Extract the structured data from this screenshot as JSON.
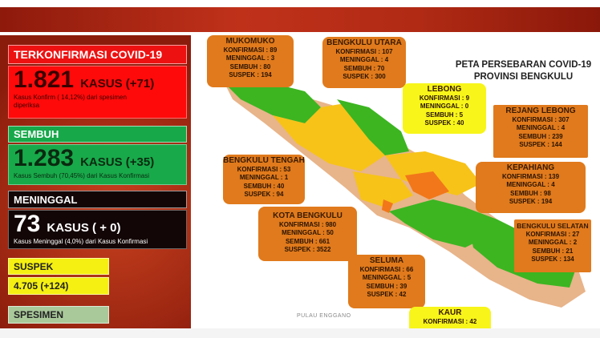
{
  "stats": {
    "confirmed": {
      "label": "TERKONFIRMASI COVID-19",
      "value": "1.821",
      "unit": "KASUS (+71)",
      "note": "Kasus Konfirm ( 14,12%) dari spesimen diperiksa"
    },
    "recovered": {
      "label": "SEMBUH",
      "value": "1.283",
      "unit": "KASUS (+35)",
      "note": "Kasus Sembuh (70,45%) dari Kasus Konfirmasi"
    },
    "deaths": {
      "label": "MENINGGAL",
      "value": "73",
      "unit": "KASUS ( + 0)",
      "note": "Kasus Meninggal (4,0%) dari Kasus Konfirmasi"
    },
    "suspect": {
      "label": "SUSPEK",
      "value": "4.705 (+124)"
    },
    "specimen": {
      "label": "SPESIMEN"
    }
  },
  "map": {
    "title_line1": "PETA PERSEBARAN COVID-19",
    "title_line2": "PROVINSI BENGKULU",
    "island_label": "PULAU ENGGANO",
    "colors": {
      "green": "#3cb521",
      "yellow": "#f7c318",
      "orange": "#f2771a",
      "box": "#e07a1c",
      "box_yellow": "#f7f51a"
    },
    "regions": {
      "mukomuko": {
        "name": "MUKOMUKO",
        "k": "KONFIRMASI : 89",
        "m": "MENINGGAL : 3",
        "s": "SEMBUH : 80",
        "sp": "SUSPEK : 194"
      },
      "bengkulu_utara": {
        "name": "BENGKULU UTARA",
        "k": "KONFIRMASI : 107",
        "m": "MENINGGAL : 4",
        "s": "SEMBUH : 70",
        "sp": "SUSPEK : 300"
      },
      "lebong": {
        "name": "LEBONG",
        "k": "KONFIRMASI : 9",
        "m": "MENINGGAL : 0",
        "s": "SEMBUH : 5",
        "sp": "SUSPEK : 40"
      },
      "rejang_lebong": {
        "name": "REJANG LEBONG",
        "k": "KONFIRMASI : 307",
        "m": "MENINGGAL : 4",
        "s": "SEMBUH : 239",
        "sp": "SUSPEK : 144"
      },
      "kepahiang": {
        "name": "KEPAHIANG",
        "k": "KONFIRMASI : 139",
        "m": "MENINGGAL : 4",
        "s": "SEMBUH : 98",
        "sp": "SUSPEK : 194"
      },
      "bengkulu_tengah": {
        "name": "BENGKULU TENGAH",
        "k": "KONFIRMASI : 53",
        "m": "MENINGGAL : 1",
        "s": "SEMBUH : 40",
        "sp": "SUSPEK : 94"
      },
      "kota_bengkulu": {
        "name": "KOTA BENGKULU",
        "k": "KONFIRMASI : 980",
        "m": "MENINGGAL : 50",
        "s": "SEMBUH : 661",
        "sp": "SUSPEK : 3522"
      },
      "seluma": {
        "name": "SELUMA",
        "k": "KONFIRMASI : 66",
        "m": "MENINGGAL : 5",
        "s": "SEMBUH : 39",
        "sp": "SUSPEK : 42"
      },
      "bengkulu_selatan": {
        "name": "BENGKULU SELATAN",
        "k": "KONFIRMASI : 27",
        "m": "MENINGGAL : 2",
        "s": "SEMBUH : 21",
        "sp": "SUSPEK : 134"
      },
      "kaur": {
        "name": "KAUR",
        "k": "KONFIRMASI : 42"
      }
    }
  }
}
